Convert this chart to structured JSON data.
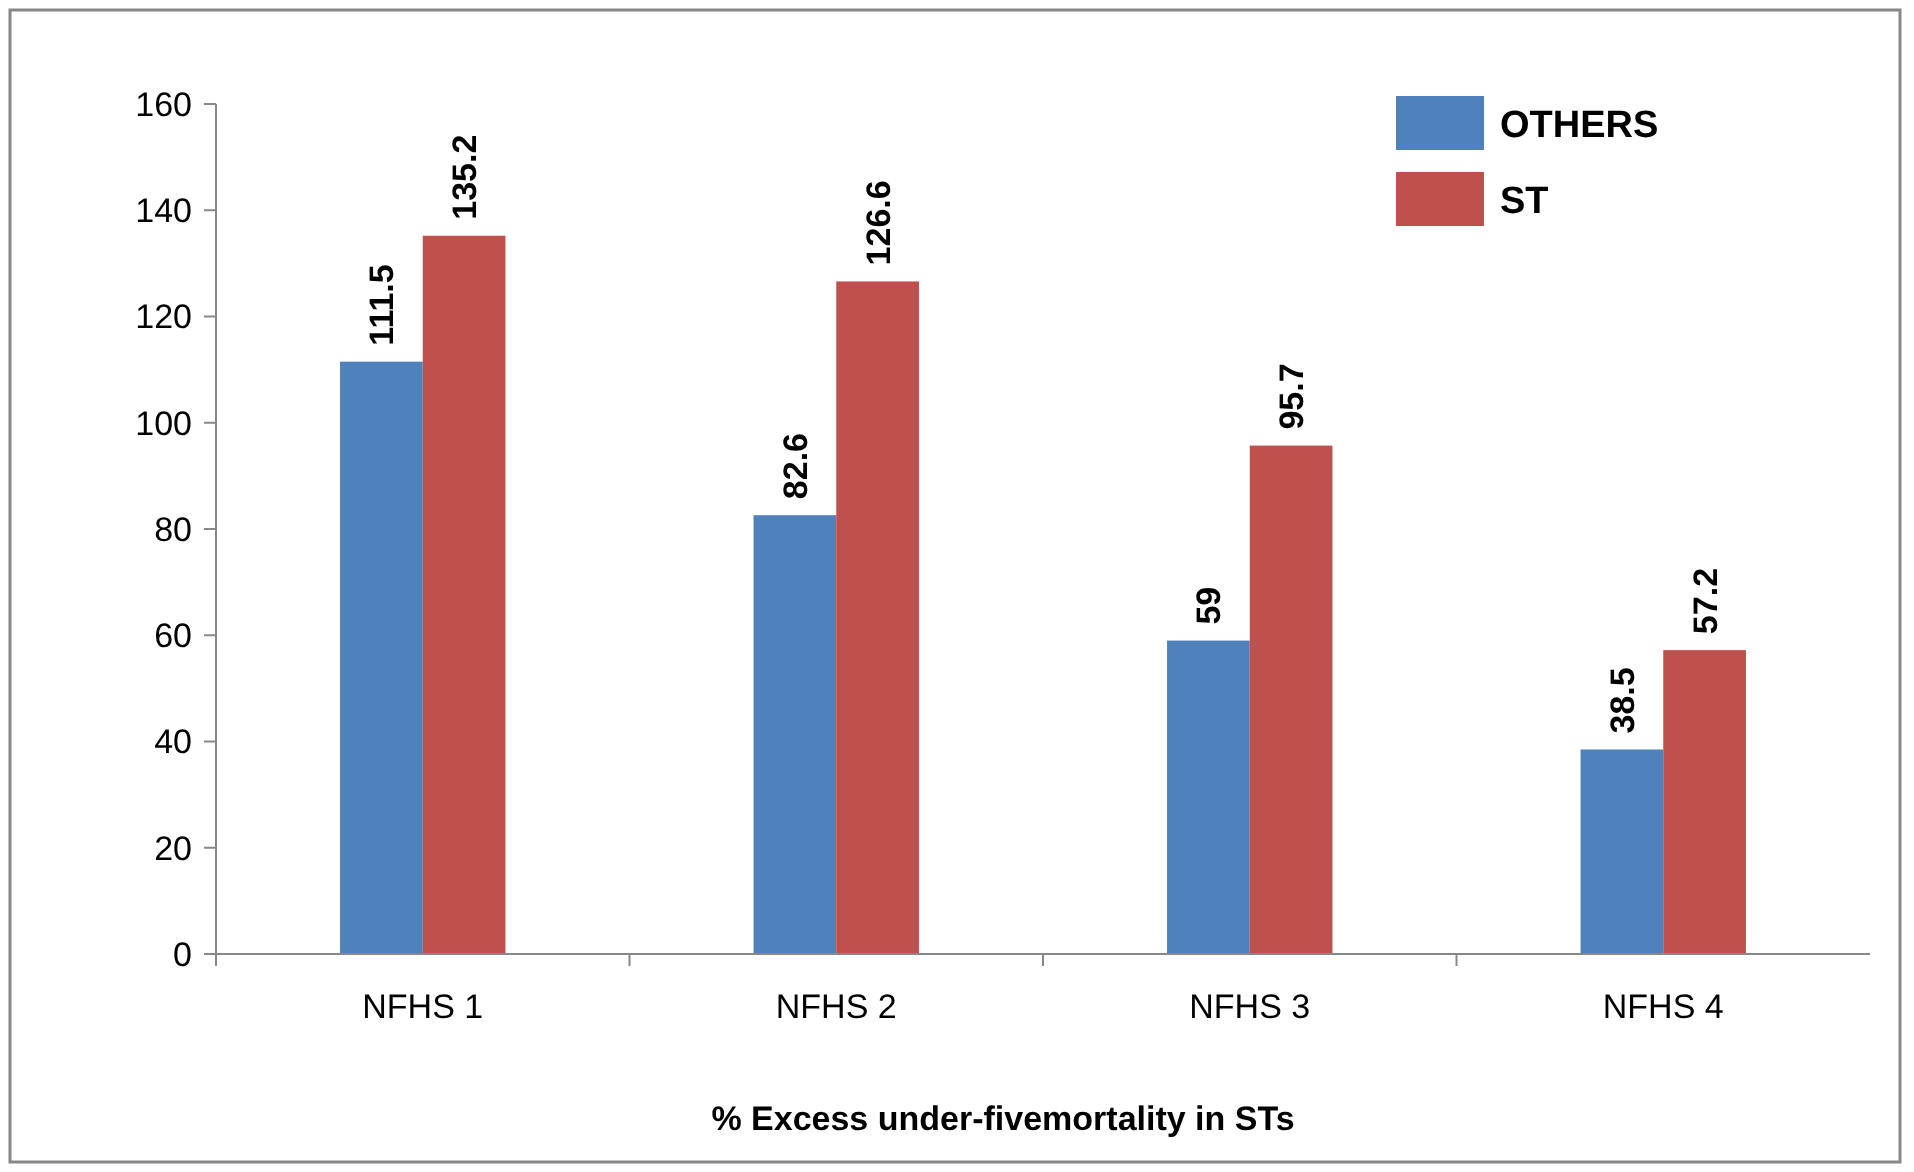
{
  "chart_data": {
    "type": "bar",
    "xlabel": "% Excess under-fivemortality in STs",
    "categories": [
      "NFHS 1",
      "NFHS 2",
      "NFHS 3",
      "NFHS 4"
    ],
    "series": [
      {
        "name": "OTHERS",
        "color": "#4f81bd",
        "values": [
          111.5,
          82.6,
          59,
          38.5
        ]
      },
      {
        "name": "ST",
        "color": "#c0504d",
        "values": [
          135.2,
          126.6,
          95.7,
          57.2
        ]
      }
    ],
    "ylim": [
      0,
      160
    ],
    "yticks": [
      0,
      20,
      40,
      60,
      80,
      100,
      120,
      140,
      160
    ],
    "data_labels": true,
    "legend": "top right",
    "grid": false
  }
}
